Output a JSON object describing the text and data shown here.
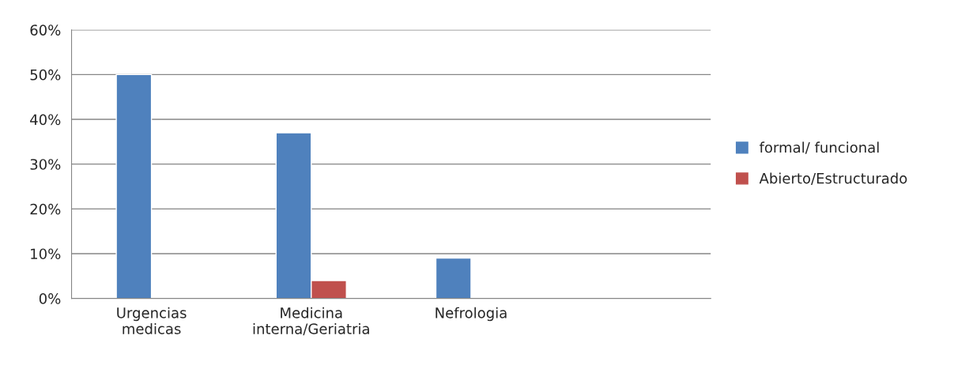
{
  "chart_data": {
    "type": "bar",
    "categories": [
      "Urgencias\nmedicas",
      "Medicina\ninterna/Geriatria",
      "Nefrologia",
      null
    ],
    "series": [
      {
        "name": "formal/ funcional",
        "color": "#4f81bd",
        "values": [
          50,
          37,
          9,
          null
        ]
      },
      {
        "name": "Abierto/Estructurado",
        "color": "#c0504d",
        "values": [
          null,
          4,
          null,
          null
        ]
      }
    ],
    "ylim": [
      0,
      60
    ],
    "yticks": [
      {
        "value": 0,
        "label": "0%"
      },
      {
        "value": 10,
        "label": "10%"
      },
      {
        "value": 20,
        "label": "20%"
      },
      {
        "value": 30,
        "label": "30%"
      },
      {
        "value": 40,
        "label": "40%"
      },
      {
        "value": 50,
        "label": "50%"
      },
      {
        "value": 60,
        "label": "60%"
      }
    ],
    "grid": "y",
    "legend": "right"
  }
}
